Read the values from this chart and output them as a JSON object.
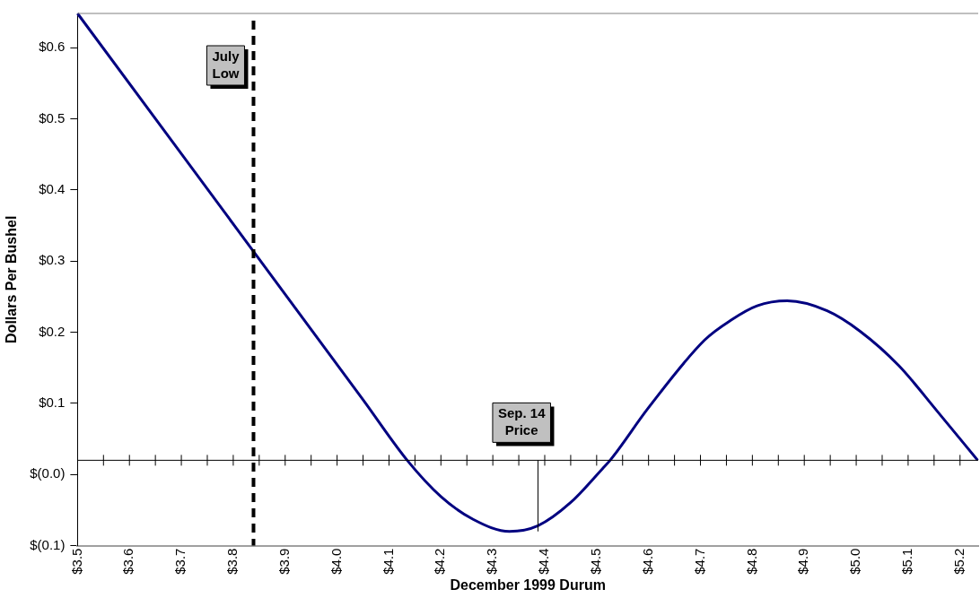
{
  "chart_data": {
    "type": "line",
    "xlabel": "December 1999 Durum",
    "ylabel": "Dollars Per Bushel",
    "series": [
      {
        "color": "#000080",
        "x": [
          3.5,
          4.05,
          4.135,
          4.2,
          4.262,
          4.332,
          4.387,
          4.449,
          4.511,
          4.526,
          4.6,
          4.708,
          4.759,
          4.809,
          4.867,
          4.944,
          5.008,
          5.082,
          5.156,
          5.234
        ],
        "values": [
          0.628,
          0.085,
          0,
          -0.051,
          -0.083,
          -0.1,
          -0.092,
          -0.06,
          -0.012,
          0,
          0.074,
          0.169,
          0.197,
          0.217,
          0.224,
          0.21,
          0.181,
          0.133,
          0.069,
          0
        ]
      }
    ],
    "xlim": [
      3.5,
      5.235
    ],
    "xticks": [
      {
        "value": 3.5,
        "label": "$3.5"
      },
      {
        "value": 3.6,
        "label": "$3.6"
      },
      {
        "value": 3.7,
        "label": "$3.7"
      },
      {
        "value": 3.8,
        "label": "$3.8"
      },
      {
        "value": 3.9,
        "label": "$3.9"
      },
      {
        "value": 4.0,
        "label": "$4.0"
      },
      {
        "value": 4.1,
        "label": "$4.1"
      },
      {
        "value": 4.2,
        "label": "$4.2"
      },
      {
        "value": 4.3,
        "label": "$4.3"
      },
      {
        "value": 4.4,
        "label": "$4.4"
      },
      {
        "value": 4.5,
        "label": "$4.5"
      },
      {
        "value": 4.6,
        "label": "$4.6"
      },
      {
        "value": 4.7,
        "label": "$4.7"
      },
      {
        "value": 4.8,
        "label": "$4.8"
      },
      {
        "value": 4.9,
        "label": "$4.9"
      },
      {
        "value": 5.0,
        "label": "$5.0"
      },
      {
        "value": 5.1,
        "label": "$5.1"
      },
      {
        "value": 5.2,
        "label": "$5.2"
      }
    ],
    "ylim": [
      -0.12,
      0.628
    ],
    "yticks": [
      {
        "value": -0.12,
        "label": "$(0.1)"
      },
      {
        "value": -0.02,
        "label": "$(0.0)"
      },
      {
        "value": 0.08,
        "label": "$0.1"
      },
      {
        "value": 0.18,
        "label": "$0.2"
      },
      {
        "value": 0.28,
        "label": "$0.3"
      },
      {
        "value": 0.38,
        "label": "$0.4"
      },
      {
        "value": 0.48,
        "label": "$0.5"
      },
      {
        "value": 0.58,
        "label": "$0.6"
      }
    ],
    "ref_lines": [
      {
        "axis": "y",
        "value": 0,
        "color": "#000000",
        "line_style": "solid"
      },
      {
        "axis": "x",
        "value": 3.839,
        "label": "July Low",
        "color": "#000000",
        "line_style": "dashed"
      },
      {
        "axis": "x",
        "value": 4.387,
        "label": "Sep. 14 Price",
        "color": "#000000",
        "line_style": "solid"
      }
    ],
    "grid": false,
    "legend": false,
    "marker": "none",
    "line_style": "solid"
  }
}
